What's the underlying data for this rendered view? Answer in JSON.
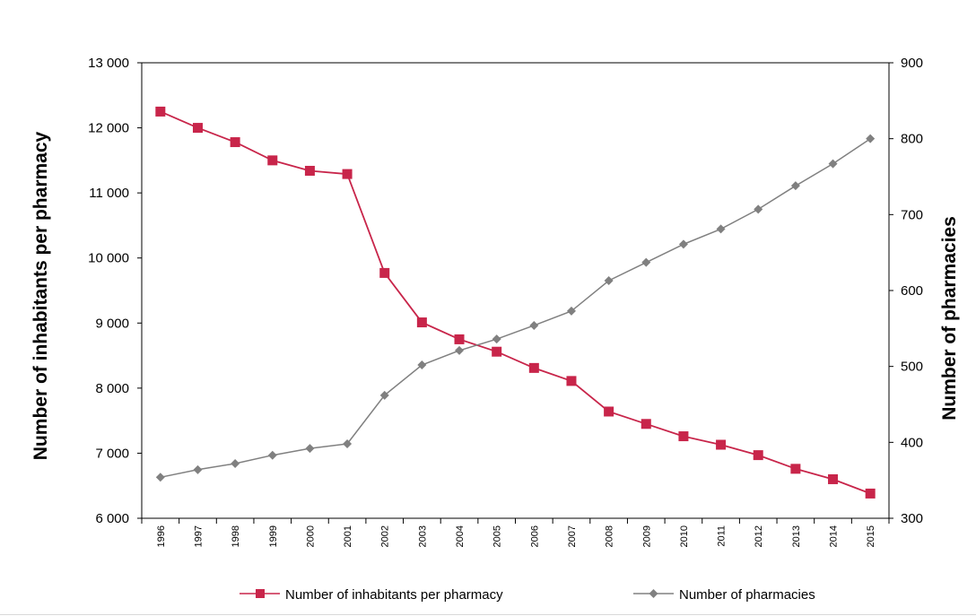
{
  "chart_data": {
    "type": "line",
    "x": [
      "1996",
      "1997",
      "1998",
      "1999",
      "2000",
      "2001",
      "2002",
      "2003",
      "2004",
      "2005",
      "2006",
      "2007",
      "2008",
      "2009",
      "2010",
      "2011",
      "2012",
      "2013",
      "2014",
      "2015"
    ],
    "series": [
      {
        "name": "Number of inhabitants per pharmacy",
        "axis": "left",
        "marker": "square",
        "color": "#c8254a",
        "values": [
          12250,
          12000,
          11780,
          11500,
          11340,
          11290,
          9770,
          9010,
          8750,
          8560,
          8310,
          8110,
          7640,
          7450,
          7260,
          7130,
          6970,
          6760,
          6600,
          6380
        ]
      },
      {
        "name": "Number of pharmacies",
        "axis": "right",
        "marker": "diamond",
        "color": "#808080",
        "values": [
          354,
          364,
          372,
          383,
          392,
          398,
          462,
          502,
          521,
          536,
          554,
          573,
          613,
          637,
          661,
          681,
          707,
          738,
          767,
          800
        ]
      }
    ],
    "ylabel": "Number of inhabitants per pharmacy",
    "ylabel_right": "Number of pharmacies",
    "ylim": [
      6000,
      13000
    ],
    "ylim_right": [
      300,
      900
    ],
    "yticks": [
      "6 000",
      "7 000",
      "8 000",
      "9 000",
      "10 000",
      "11 000",
      "12 000",
      "13 000"
    ],
    "yticks_right": [
      "300",
      "400",
      "500",
      "600",
      "700",
      "800",
      "900"
    ],
    "grid": false,
    "legend_position": "bottom"
  }
}
